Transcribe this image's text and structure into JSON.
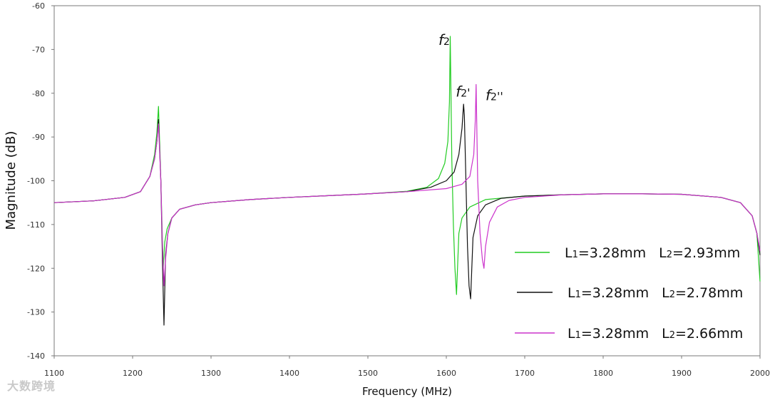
{
  "chart_data": {
    "type": "line",
    "title": "",
    "xlabel": "Frequency (MHz)",
    "ylabel": "Magnitude (dB)",
    "xlim": [
      1100,
      2000
    ],
    "ylim": [
      -140,
      -60
    ],
    "xticks": [
      1100,
      1200,
      1300,
      1400,
      1500,
      1600,
      1700,
      1800,
      1900,
      2000
    ],
    "yticks": [
      -60,
      -70,
      -80,
      -90,
      -100,
      -110,
      -120,
      -130,
      -140
    ],
    "legend_position": "bottom-right",
    "series": [
      {
        "name": "L1=3.28mm L2=2.93mm",
        "legend_parts": [
          "L",
          "1",
          "=3.28mm",
          "L",
          "2",
          "=2.93mm"
        ],
        "color": "#22cc22",
        "x": [
          1100,
          1150,
          1190,
          1210,
          1222,
          1228,
          1231,
          1233,
          1236,
          1239,
          1241,
          1244,
          1250,
          1260,
          1280,
          1300,
          1350,
          1400,
          1450,
          1500,
          1550,
          1575,
          1590,
          1598,
          1602,
          1604,
          1605,
          1607,
          1609,
          1611,
          1613,
          1616,
          1620,
          1630,
          1650,
          1700,
          1750,
          1800,
          1850,
          1900,
          1950,
          1975,
          1990,
          1996,
          2000
        ],
        "y": [
          -105,
          -104.6,
          -103.8,
          -102.5,
          -99,
          -94,
          -89,
          -83,
          -100,
          -120,
          -114,
          -111,
          -108.5,
          -106.5,
          -105.5,
          -105,
          -104.3,
          -103.8,
          -103.4,
          -103,
          -102.4,
          -101.5,
          -99.5,
          -96,
          -91,
          -82,
          -67,
          -95,
          -110,
          -120,
          -126,
          -112,
          -108.5,
          -106,
          -104.3,
          -103.5,
          -103.2,
          -103,
          -103,
          -103.1,
          -103.8,
          -105,
          -108,
          -112,
          -123
        ]
      },
      {
        "name": "L1=3.28mm L2=2.78mm",
        "legend_parts": [
          "L",
          "1",
          "=3.28mm",
          "L",
          "2",
          "=2.78mm"
        ],
        "color": "#111111",
        "x": [
          1100,
          1150,
          1190,
          1210,
          1222,
          1228,
          1231,
          1233,
          1236,
          1238,
          1240,
          1242,
          1245,
          1250,
          1260,
          1280,
          1300,
          1350,
          1400,
          1450,
          1500,
          1550,
          1580,
          1600,
          1610,
          1616,
          1620,
          1622,
          1623,
          1625,
          1627,
          1629,
          1631,
          1634,
          1640,
          1650,
          1670,
          1700,
          1750,
          1800,
          1850,
          1900,
          1950,
          1975,
          1990,
          1996,
          2000
        ],
        "y": [
          -105,
          -104.6,
          -103.8,
          -102.5,
          -99,
          -95,
          -91,
          -86,
          -100,
          -118,
          -133,
          -117,
          -112,
          -108.5,
          -106.5,
          -105.5,
          -105,
          -104.3,
          -103.8,
          -103.4,
          -103,
          -102.5,
          -101.5,
          -100,
          -98,
          -94,
          -88,
          -82.5,
          -85,
          -100,
          -115,
          -124,
          -127,
          -113,
          -108,
          -105.5,
          -104,
          -103.5,
          -103.2,
          -103,
          -103,
          -103.1,
          -103.8,
          -105,
          -108,
          -112,
          -117
        ]
      },
      {
        "name": "L1=3.28mm L2=2.66mm",
        "legend_parts": [
          "L",
          "1",
          "=3.28mm",
          "L",
          "2",
          "=2.66mm"
        ],
        "color": "#cc33cc",
        "x": [
          1100,
          1150,
          1190,
          1210,
          1222,
          1228,
          1231,
          1233,
          1236,
          1238,
          1240,
          1242,
          1245,
          1250,
          1260,
          1280,
          1300,
          1350,
          1400,
          1450,
          1500,
          1550,
          1600,
          1620,
          1630,
          1635,
          1637,
          1638,
          1640,
          1643,
          1646,
          1648,
          1650,
          1655,
          1665,
          1680,
          1700,
          1750,
          1800,
          1850,
          1900,
          1950,
          1975,
          1990,
          1996,
          2000
        ],
        "y": [
          -105,
          -104.6,
          -103.8,
          -102.5,
          -99,
          -95,
          -91,
          -87,
          -100,
          -115,
          -124,
          -118,
          -112,
          -108.5,
          -106.5,
          -105.5,
          -105,
          -104.3,
          -103.8,
          -103.4,
          -103,
          -102.5,
          -101.8,
          -100.8,
          -99,
          -94,
          -86,
          -78,
          -100,
          -112,
          -118,
          -120,
          -115,
          -109.5,
          -106,
          -104.5,
          -103.8,
          -103.2,
          -103,
          -103,
          -103.1,
          -103.8,
          -105,
          -108,
          -112,
          -116
        ]
      }
    ],
    "annotations": [
      {
        "id": "f2",
        "base": "f",
        "sub": "2",
        "suffix": "",
        "x": 1590,
        "y": -69,
        "color": "#111111"
      },
      {
        "id": "f2p",
        "base": "f",
        "sub": "2",
        "suffix": "'",
        "x": 1612,
        "y": -80.8,
        "color": "#111111"
      },
      {
        "id": "f2pp",
        "base": "f",
        "sub": "2",
        "suffix": "''",
        "x": 1650,
        "y": -81.6,
        "color": "#111111"
      }
    ]
  },
  "watermark": "大数跨境"
}
